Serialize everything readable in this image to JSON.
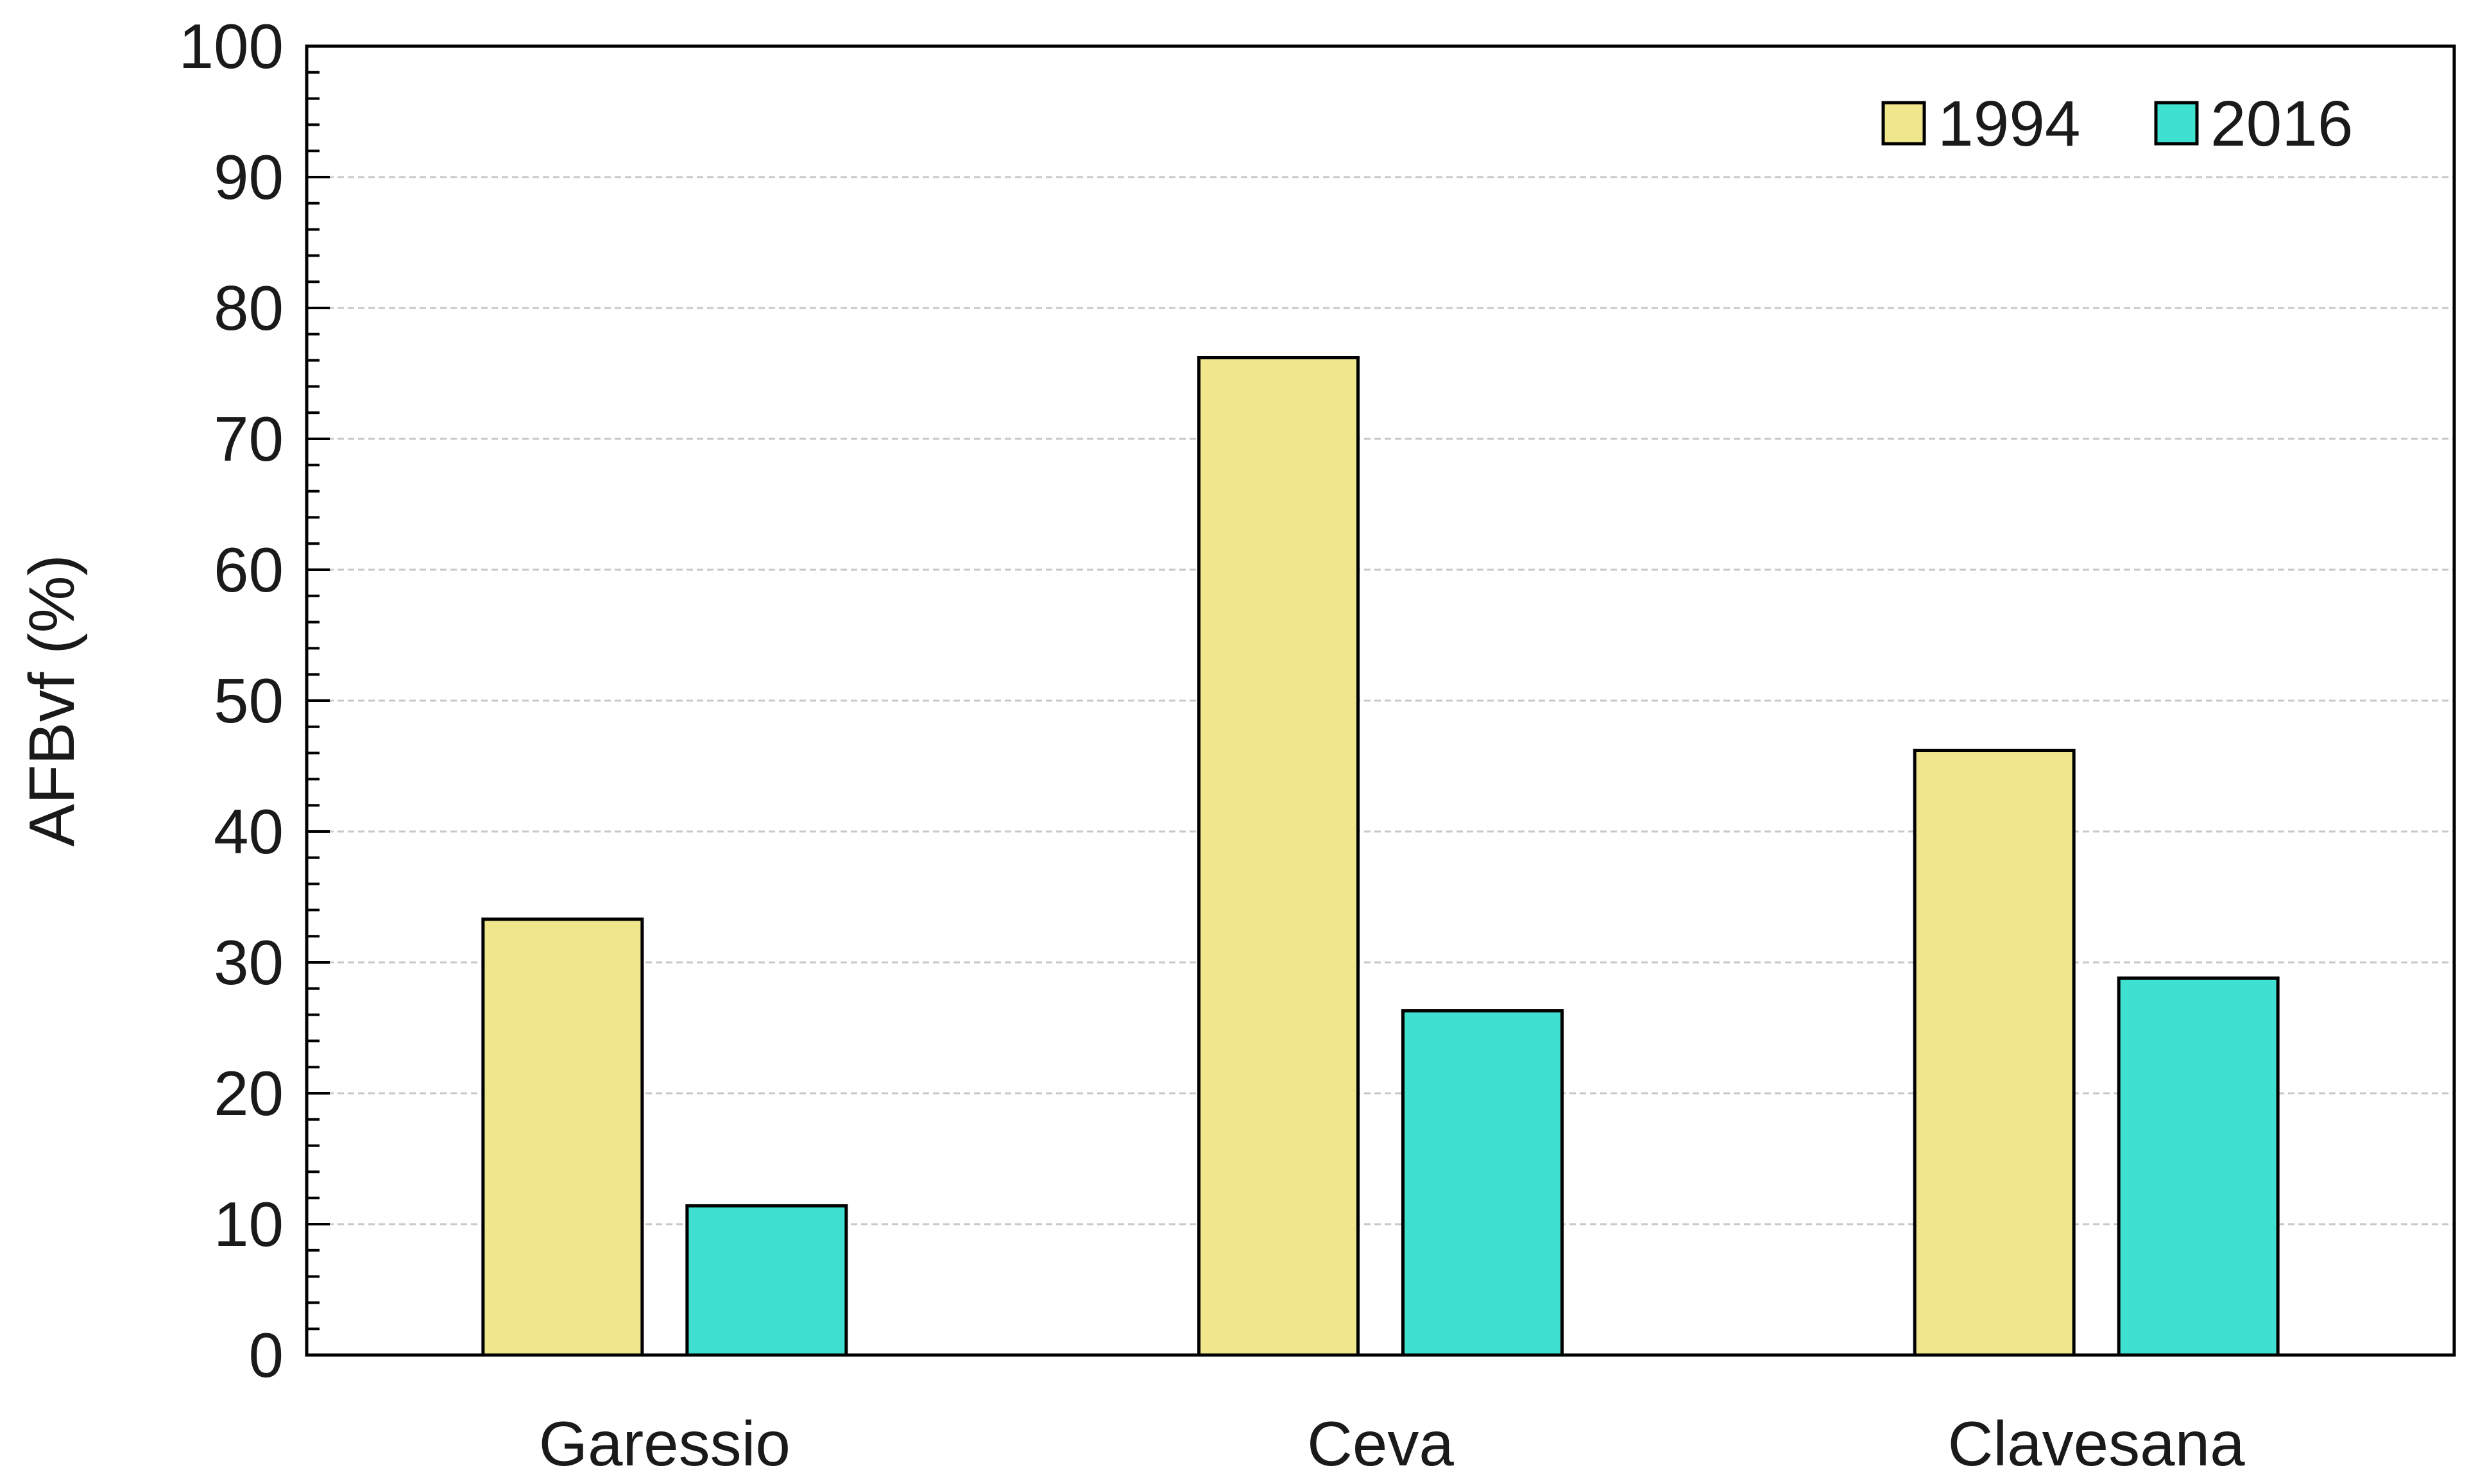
{
  "chart_data": {
    "type": "bar",
    "title": "",
    "xlabel": "",
    "ylabel": "AFBvf (%)",
    "ylim": [
      0,
      100
    ],
    "yticks": [
      0,
      10,
      20,
      30,
      40,
      50,
      60,
      70,
      80,
      90,
      100
    ],
    "y_minor_step": 2,
    "grid": "horizontal dashed",
    "legend_position": "top-right",
    "categories": [
      "Garessio",
      "Ceva",
      "Clavesana"
    ],
    "series": [
      {
        "name": "1994",
        "color": "#f0e68c",
        "values": [
          33.3,
          76.2,
          46.2
        ]
      },
      {
        "name": "2016",
        "color": "#40e0d0",
        "values": [
          11.4,
          26.3,
          28.8
        ]
      }
    ]
  }
}
